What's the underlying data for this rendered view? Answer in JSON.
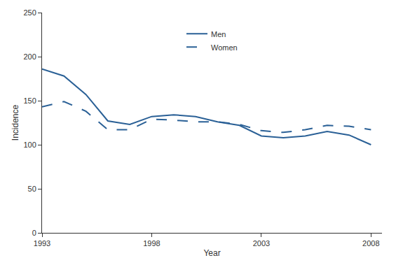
{
  "chart_data": {
    "type": "line",
    "x_label": "Year",
    "y_label": "Incidence",
    "x": [
      1993,
      1994,
      1995,
      1996,
      1997,
      1998,
      1999,
      2000,
      2001,
      2002,
      2003,
      2004,
      2005,
      2006,
      2007,
      2008
    ],
    "series": [
      {
        "name": "Men",
        "color": "#2a6096",
        "line_style": "solid",
        "values": [
          186,
          178,
          157,
          127,
          123,
          132,
          134,
          132,
          126,
          122,
          110,
          108,
          110,
          115,
          111,
          100
        ]
      },
      {
        "name": "Women",
        "color": "#2a6096",
        "line_style": "dashed",
        "values": [
          143,
          149,
          138,
          117,
          117,
          129,
          128,
          126,
          126,
          123,
          116,
          114,
          117,
          122,
          121,
          117
        ]
      }
    ],
    "xlim": [
      1993,
      2008.5
    ],
    "xticks": [
      1993,
      1998,
      2003,
      2008
    ],
    "ylim": [
      0,
      250
    ],
    "yticks": [
      0,
      50,
      100,
      150,
      200,
      250
    ],
    "grid": false,
    "legend": "top"
  }
}
